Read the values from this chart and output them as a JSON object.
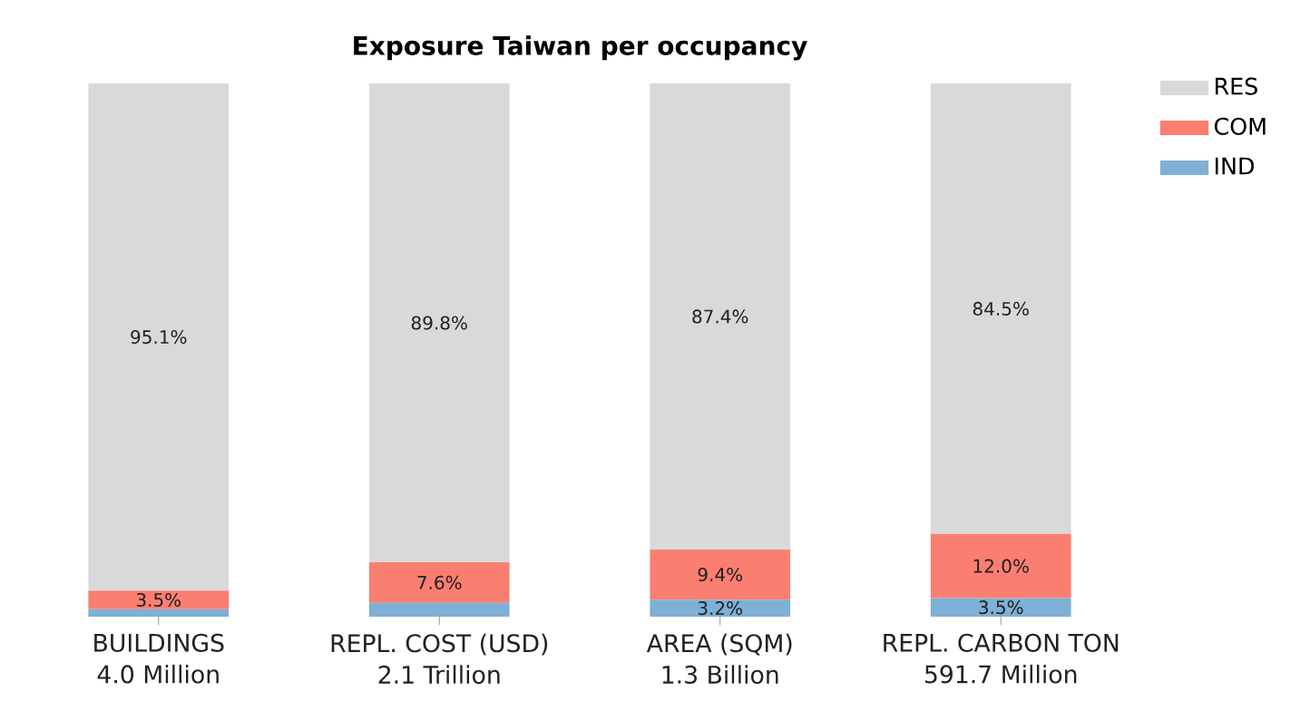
{
  "chart_data": {
    "type": "bar",
    "title": "Exposure Taiwan per occupancy",
    "categories": [
      "BUILDINGS\n4.0 Million",
      "REPL. COST (USD)\n2.1 Trillion",
      "AREA (SQM)\n1.3 Billion",
      "REPL. CARBON TON\n591.7 Million"
    ],
    "stacked": true,
    "series": [
      {
        "name": "IND",
        "color": "#7fb0d5",
        "values": [
          1.4,
          2.6,
          3.2,
          3.5
        ],
        "value_labels": [
          null,
          null,
          "3.2%",
          "3.5%"
        ]
      },
      {
        "name": "COM",
        "color": "#fa7f71",
        "values": [
          3.5,
          7.6,
          9.4,
          12.0
        ],
        "value_labels": [
          "3.5%",
          "7.6%",
          "9.4%",
          "12.0%"
        ]
      },
      {
        "name": "RES",
        "color": "#d9d9d9",
        "values": [
          95.1,
          89.8,
          87.4,
          84.5
        ],
        "value_labels": [
          "95.1%",
          "89.8%",
          "87.4%",
          "84.5%"
        ]
      }
    ],
    "legend": "top right"
  }
}
